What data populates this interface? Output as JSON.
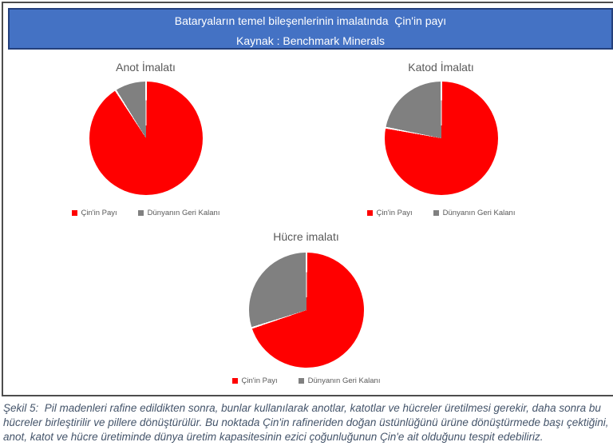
{
  "header": {
    "title": "Bataryaların temel bileşenlerinin imalatında  Çin'in payı",
    "source": "Kaynak : Benchmark Minerals"
  },
  "chart_data": [
    {
      "type": "pie",
      "title": "Anot İmalatı",
      "labels": [
        "Çin'in Payı",
        "Dünyanın Geri Kalanı"
      ],
      "values": [
        91,
        9
      ],
      "colors": [
        "#FF0000",
        "#808080"
      ],
      "legend_position": "bottom",
      "start_angle": 0,
      "direction": "clockwise"
    },
    {
      "type": "pie",
      "title": "Katod İmalatı",
      "labels": [
        "Çin'in Payı",
        "Dünyanın Geri Kalanı"
      ],
      "values": [
        78,
        22
      ],
      "colors": [
        "#FF0000",
        "#808080"
      ],
      "legend_position": "bottom",
      "start_angle": 0,
      "direction": "clockwise"
    },
    {
      "type": "pie",
      "title": "Hücre imalatı",
      "labels": [
        "Çin'in Payı",
        "Dünyanın Geri Kalanı"
      ],
      "values": [
        70,
        30
      ],
      "colors": [
        "#FF0000",
        "#808080"
      ],
      "legend_position": "bottom",
      "start_angle": 0,
      "direction": "clockwise"
    }
  ],
  "caption": "Şekil 5:  Pil madenleri rafine edildikten sonra, bunlar kullanılarak anotlar, katotlar ve hücreler üretilmesi gerekir, daha sonra bu hücreler birleştirilir ve pillere dönüştürülür. Bu noktada Çin'in rafineriden doğan üstünlüğünü ürüne dönüştürmede başı çektiğini, anot, katot ve hücre üretiminde dünya üretim kapasitesinin ezici çoğunluğunun Çin'e ait olduğunu tespit edebiliriz.",
  "colors": {
    "banner_bg": "#4472C4",
    "banner_border": "#24407C",
    "china_red": "#FF0000",
    "rest_gray": "#808080",
    "chart_text": "#595959",
    "caption_text": "#44546A",
    "frame_border": "#4d4d4d"
  }
}
